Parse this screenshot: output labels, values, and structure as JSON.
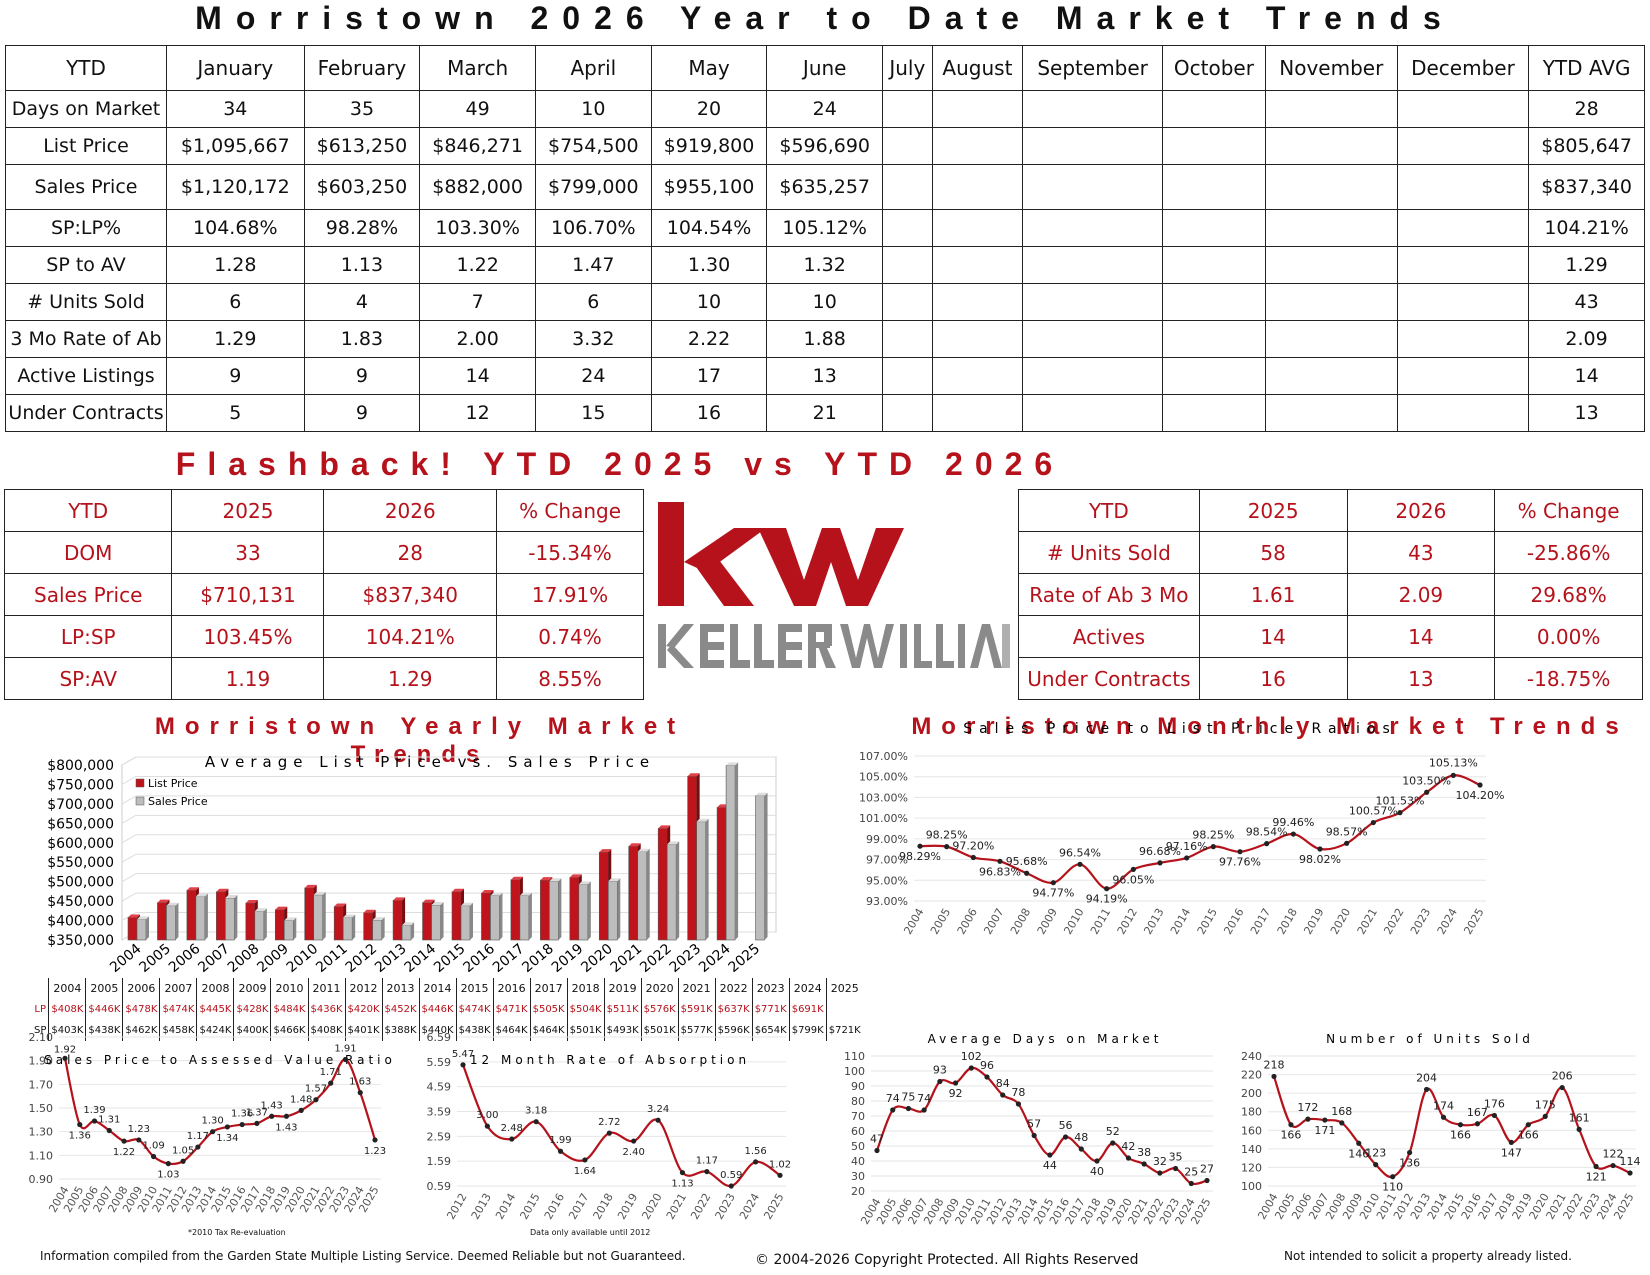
{
  "main_title": "Morristown 2026 Year to Date Market Trends",
  "main_table": {
    "headers": [
      "YTD",
      "January",
      "February",
      "March",
      "April",
      "May",
      "June",
      "July",
      "August",
      "September",
      "October",
      "November",
      "December",
      "YTD AVG"
    ],
    "rows": [
      [
        "Days on Market",
        "34",
        "35",
        "49",
        "10",
        "20",
        "24",
        "",
        "",
        "",
        "",
        "",
        "",
        "28"
      ],
      [
        "List Price",
        "$1,095,667",
        "$613,250",
        "$846,271",
        "$754,500",
        "$919,800",
        "$596,690",
        "",
        "",
        "",
        "",
        "",
        "",
        "$805,647"
      ],
      [
        "Sales Price",
        "$1,120,172",
        "$603,250",
        "$882,000",
        "$799,000",
        "$955,100",
        "$635,257",
        "",
        "",
        "",
        "",
        "",
        "",
        "$837,340"
      ],
      [
        "SP:LP%",
        "104.68%",
        "98.28%",
        "103.30%",
        "106.70%",
        "104.54%",
        "105.12%",
        "",
        "",
        "",
        "",
        "",
        "",
        "104.21%"
      ],
      [
        "SP to AV",
        "1.28",
        "1.13",
        "1.22",
        "1.47",
        "1.30",
        "1.32",
        "",
        "",
        "",
        "",
        "",
        "",
        "1.29"
      ],
      [
        "# Units Sold",
        "6",
        "4",
        "7",
        "6",
        "10",
        "10",
        "",
        "",
        "",
        "",
        "",
        "",
        "43"
      ],
      [
        "3 Mo Rate of Ab",
        "1.29",
        "1.83",
        "2.00",
        "3.32",
        "2.22",
        "1.88",
        "",
        "",
        "",
        "",
        "",
        "",
        "2.09"
      ],
      [
        "Active Listings",
        "9",
        "9",
        "14",
        "24",
        "17",
        "13",
        "",
        "",
        "",
        "",
        "",
        "",
        "14"
      ],
      [
        "Under Contracts",
        "5",
        "9",
        "12",
        "15",
        "16",
        "21",
        "",
        "",
        "",
        "",
        "",
        "",
        "13"
      ]
    ]
  },
  "flashback_title": "Flashback!  YTD 2025 vs YTD 2026",
  "flash_left": {
    "headers": [
      "YTD",
      "2025",
      "2026",
      "% Change"
    ],
    "rows": [
      [
        "DOM",
        "33",
        "28",
        "-15.34%"
      ],
      [
        "Sales Price",
        "$710,131",
        "$837,340",
        "17.91%"
      ],
      [
        "LP:SP",
        "103.45%",
        "104.21%",
        "0.74%"
      ],
      [
        "SP:AV",
        "1.19",
        "1.29",
        "8.55%"
      ]
    ]
  },
  "flash_right": {
    "headers": [
      "YTD",
      "2025",
      "2026",
      "% Change"
    ],
    "rows": [
      [
        "# Units Sold",
        "58",
        "43",
        "-25.86%"
      ],
      [
        "Rate of Ab 3 Mo",
        "1.61",
        "2.09",
        "29.68%"
      ],
      [
        "Actives",
        "14",
        "14",
        "0.00%"
      ],
      [
        "Under Contracts",
        "16",
        "13",
        "-18.75%"
      ]
    ]
  },
  "logo": {
    "mark": "kw",
    "wordmark": "KELLERWILLIAMS",
    "color_red": "#b5121b",
    "color_gray": "#8a8a8a"
  },
  "yearly_title": "Morristown Yearly Market Trends",
  "monthly_title": "Morristown Monthly Market Trends",
  "yearly_table": {
    "years": [
      "2004",
      "2005",
      "2006",
      "2007",
      "2008",
      "2009",
      "2010",
      "2011",
      "2012",
      "2013",
      "2014",
      "2015",
      "2016",
      "2017",
      "2018",
      "2019",
      "2020",
      "2021",
      "2022",
      "2023",
      "2024",
      "2025"
    ],
    "lp_label": "LP",
    "sp_label": "SP",
    "lp": [
      "$408K",
      "$446K",
      "$478K",
      "$474K",
      "$445K",
      "$428K",
      "$484K",
      "$436K",
      "$420K",
      "$452K",
      "$446K",
      "$474K",
      "$471K",
      "$505K",
      "$504K",
      "$511K",
      "$576K",
      "$591K",
      "$637K",
      "$771K",
      "$691K",
      ""
    ],
    "sp": [
      "$403K",
      "$438K",
      "$462K",
      "$458K",
      "$424K",
      "$400K",
      "$466K",
      "$408K",
      "$401K",
      "$388K",
      "$440K",
      "$438K",
      "$464K",
      "$464K",
      "$501K",
      "$493K",
      "$501K",
      "$577K",
      "$596K",
      "$654K",
      "$799K",
      "$721K"
    ]
  },
  "footer": {
    "left": "Information compiled from the Garden State Multiple Listing Service.  Deemed Reliable but not Guaranteed.",
    "center": "© 2004-2026 Copyright Protected.  All Rights Reserved",
    "right": "Not intended to solicit a property already listed.",
    "note_reval": "*2010 Tax Re-evaluation",
    "note_absorption": "Data only available until 2012"
  },
  "chart_data": [
    {
      "id": "list-vs-sales",
      "type": "bar",
      "title": "Average List Price vs. Sales Price",
      "categories": [
        "2004",
        "2005",
        "2006",
        "2007",
        "2008",
        "2009",
        "2010",
        "2011",
        "2012",
        "2013",
        "2014",
        "2015",
        "2016",
        "2017",
        "2018",
        "2019",
        "2020",
        "2021",
        "2022",
        "2023",
        "2024",
        "2025"
      ],
      "series": [
        {
          "name": "List Price",
          "color": "#c0141c",
          "values": [
            408,
            446,
            478,
            474,
            445,
            428,
            484,
            436,
            420,
            452,
            446,
            474,
            471,
            505,
            504,
            511,
            576,
            591,
            637,
            771,
            691,
            null
          ]
        },
        {
          "name": "Sales Price",
          "color": "#bdbdbd",
          "values": [
            403,
            438,
            462,
            458,
            424,
            400,
            466,
            408,
            401,
            388,
            440,
            438,
            464,
            464,
            501,
            493,
            501,
            577,
            596,
            654,
            799,
            721
          ]
        }
      ],
      "y_ticks": [
        "$350,000",
        "$400,000",
        "$450,000",
        "$500,000",
        "$550,000",
        "$600,000",
        "$650,000",
        "$700,000",
        "$750,000",
        "$800,000"
      ],
      "ylim": [
        350,
        800
      ],
      "legend": "top-left"
    },
    {
      "id": "sp-lp-ratio",
      "type": "line",
      "title": "Sales Price to List Price Ratios",
      "x": [
        "2004",
        "2005",
        "2006",
        "2007",
        "2008",
        "2009",
        "2010",
        "2011",
        "2012",
        "2013",
        "2014",
        "2015",
        "2016",
        "2017",
        "2018",
        "2019",
        "2020",
        "2021",
        "2022",
        "2023",
        "2024",
        "2025"
      ],
      "values": [
        98.29,
        98.25,
        97.2,
        96.83,
        95.68,
        94.77,
        96.54,
        94.19,
        96.05,
        96.68,
        97.16,
        98.25,
        97.76,
        98.54,
        99.46,
        98.02,
        98.57,
        100.57,
        101.53,
        103.5,
        105.13,
        104.2
      ],
      "labels": [
        "98.29%",
        "98.25%",
        "97.20%",
        "96.83%",
        "95.68%",
        "94.77%",
        "96.54%",
        "94.19%",
        "96.05%",
        "96.68%",
        "97.16%",
        "98.25%",
        "97.76%",
        "98.54%",
        "99.46%",
        "98.02%",
        "98.57%",
        "100.57%",
        "101.53%",
        "103.50%",
        "105.13%",
        "104.20%"
      ],
      "y_ticks": [
        "93.00%",
        "95.00%",
        "97.00%",
        "99.00%",
        "101.00%",
        "103.00%",
        "105.00%",
        "107.00%"
      ],
      "ylim": [
        93,
        107
      ]
    },
    {
      "id": "sp-av-ratio",
      "type": "line",
      "title": "Sales Price to Assessed Value Ratio",
      "x": [
        "2004",
        "2005",
        "2006",
        "2007",
        "2008",
        "2009",
        "2010",
        "2011",
        "2012",
        "2013",
        "2014",
        "2015",
        "2016",
        "2017",
        "2018",
        "2019",
        "2020",
        "2021",
        "2022",
        "2023",
        "2024",
        "2025"
      ],
      "values": [
        1.92,
        1.36,
        1.39,
        1.31,
        1.22,
        1.23,
        1.09,
        1.03,
        1.05,
        1.17,
        1.3,
        1.34,
        1.36,
        1.37,
        1.43,
        1.43,
        1.48,
        1.57,
        1.71,
        1.91,
        1.63,
        1.23
      ],
      "labels": [
        "1.92",
        "1.36",
        "1.39",
        "1.31",
        "1.22",
        "1.23",
        "1.09",
        "1.03",
        "1.05",
        "1.17",
        "1.30",
        "1.34",
        "1.36",
        "1.37",
        "1.43",
        "1.43",
        "1.48",
        "1.57",
        "1.71",
        "1.91",
        "1.63",
        "1.23"
      ],
      "y_ticks": [
        "0.90",
        "1.10",
        "1.30",
        "1.50",
        "1.70",
        "1.90",
        "2.10"
      ],
      "ylim": [
        0.9,
        2.1
      ]
    },
    {
      "id": "absorption",
      "type": "line",
      "title": "12 Month Rate of Absorption",
      "x": [
        "2012",
        "2013",
        "2014",
        "2015",
        "2016",
        "2017",
        "2018",
        "2019",
        "2020",
        "2021",
        "2022",
        "2023",
        "2024",
        "2025"
      ],
      "values": [
        5.47,
        3.0,
        2.48,
        3.18,
        1.99,
        1.64,
        2.72,
        2.4,
        3.24,
        1.13,
        1.17,
        0.59,
        1.56,
        1.02
      ],
      "labels": [
        "5.47",
        "3.00",
        "2.48",
        "3.18",
        "1.99",
        "1.64",
        "2.72",
        "2.40",
        "3.24",
        "1.13",
        "1.17",
        "0.59",
        "1.56",
        "1.02"
      ],
      "y_ticks": [
        "0.59",
        "1.59",
        "2.59",
        "3.59",
        "4.59",
        "5.59",
        "6.59"
      ],
      "ylim": [
        0.59,
        6.59
      ]
    },
    {
      "id": "dom",
      "type": "line",
      "title": "Average Days on Market",
      "x": [
        "2004",
        "2005",
        "2006",
        "2007",
        "2008",
        "2009",
        "2010",
        "2011",
        "2012",
        "2013",
        "2014",
        "2015",
        "2016",
        "2017",
        "2018",
        "2019",
        "2020",
        "2021",
        "2022",
        "2023",
        "2024",
        "2025"
      ],
      "values": [
        47,
        74,
        75,
        74,
        93,
        92,
        102,
        96,
        84,
        78,
        57,
        44,
        56,
        48,
        40,
        52,
        42,
        38,
        32,
        35,
        25,
        27
      ],
      "labels": [
        "47",
        "74",
        "75",
        "74",
        "93",
        "92",
        "102",
        "96",
        "84",
        "78",
        "57",
        "44",
        "56",
        "48",
        "40",
        "52",
        "42",
        "38",
        "32",
        "35",
        "25",
        "27"
      ],
      "y_ticks": [
        "20",
        "30",
        "40",
        "50",
        "60",
        "70",
        "80",
        "90",
        "100",
        "110"
      ],
      "ylim": [
        20,
        110
      ]
    },
    {
      "id": "units-sold",
      "type": "line",
      "title": "Number of Units Sold",
      "x": [
        "2004",
        "2005",
        "2006",
        "2007",
        "2008",
        "2009",
        "2010",
        "2011",
        "2012",
        "2013",
        "2014",
        "2015",
        "2016",
        "2017",
        "2018",
        "2019",
        "2020",
        "2021",
        "2022",
        "2023",
        "2024",
        "2025"
      ],
      "values": [
        218,
        166,
        172,
        171,
        168,
        146,
        123,
        110,
        136,
        204,
        174,
        166,
        167,
        176,
        147,
        166,
        175,
        206,
        161,
        121,
        122,
        114
      ],
      "labels": [
        "218",
        "166",
        "172",
        "171",
        "168",
        "146",
        "123",
        "110",
        "136",
        "204",
        "174",
        "166",
        "167",
        "176",
        "147",
        "166",
        "175",
        "206",
        "161",
        "121",
        "122",
        "114"
      ],
      "y_ticks": [
        "100",
        "120",
        "140",
        "160",
        "180",
        "200",
        "220",
        "240"
      ],
      "ylim": [
        100,
        240
      ]
    }
  ]
}
